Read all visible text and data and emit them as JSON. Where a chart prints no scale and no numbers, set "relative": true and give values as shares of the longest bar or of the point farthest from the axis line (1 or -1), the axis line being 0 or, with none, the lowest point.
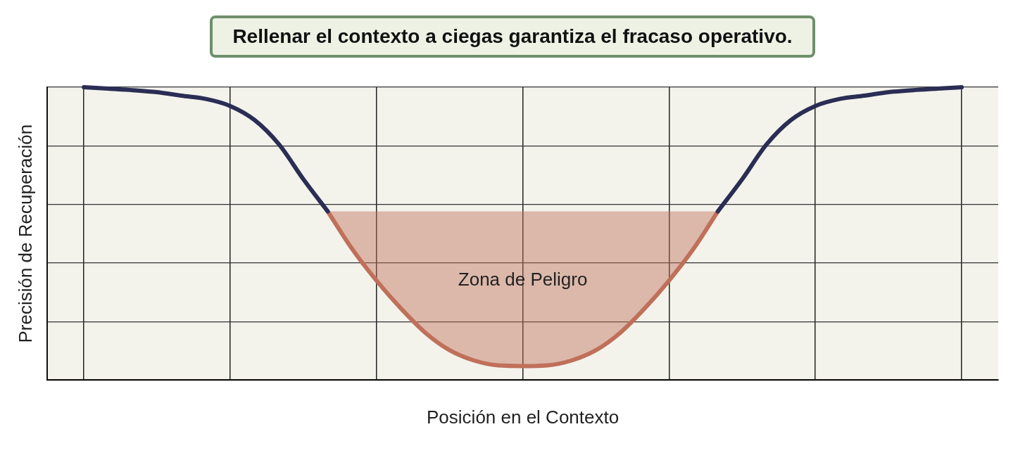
{
  "chart_data": {
    "type": "line",
    "title": "Rellenar el contexto a ciegas garantiza el fracaso operativo.",
    "xlabel": "Posición en el Contexto",
    "ylabel": "Precisión de Recuperación",
    "relative": true,
    "grid": true,
    "legend": false,
    "marker": "none",
    "line_style": "solid",
    "categories": [
      null,
      null,
      null,
      null,
      null,
      null,
      null,
      null,
      null,
      null,
      null,
      null,
      null,
      null,
      null,
      null,
      null,
      null,
      null,
      null,
      null,
      null,
      null,
      null,
      null,
      null,
      null,
      null,
      null,
      null,
      null,
      null,
      null,
      null,
      null,
      null,
      null,
      null,
      null
    ],
    "series": [
      {
        "color": "#2b2d55",
        "values": [
          null,
          1.0,
          0.995,
          0.99,
          0.983,
          0.971,
          0.96,
          0.936,
          0.888,
          0.805,
          0.686,
          0.576,
          null,
          null,
          null,
          null,
          null,
          null,
          null,
          null,
          null,
          null,
          null,
          null,
          null,
          null,
          null,
          0.576,
          0.686,
          0.805,
          0.888,
          0.936,
          0.96,
          0.971,
          0.983,
          0.99,
          0.995,
          1.0,
          null
        ]
      },
      {
        "color": "#c0705a",
        "values": [
          null,
          null,
          null,
          null,
          null,
          null,
          null,
          null,
          null,
          null,
          null,
          0.576,
          0.448,
          0.34,
          0.245,
          0.162,
          0.102,
          0.067,
          0.05,
          0.048,
          0.05,
          0.067,
          0.102,
          0.162,
          0.245,
          0.34,
          0.448,
          0.576,
          null,
          null,
          null,
          null,
          null,
          null,
          null,
          null,
          null,
          null,
          null
        ],
        "lower": [
          null,
          null,
          null,
          null,
          null,
          null,
          null,
          null,
          null,
          null,
          null,
          0.576,
          0.448,
          0.34,
          0.245,
          0.162,
          0.102,
          0.067,
          0.05,
          0.048,
          0.05,
          0.067,
          0.102,
          0.162,
          0.245,
          0.34,
          0.448,
          0.576,
          null,
          null,
          null,
          null,
          null,
          null,
          null,
          null,
          null,
          null,
          null
        ],
        "upper": [
          null,
          null,
          null,
          null,
          null,
          null,
          null,
          null,
          null,
          null,
          null,
          0.576,
          0.576,
          0.576,
          0.576,
          0.576,
          0.576,
          0.576,
          0.576,
          0.576,
          0.576,
          0.576,
          0.576,
          0.576,
          0.576,
          0.576,
          0.576,
          0.576,
          null,
          null,
          null,
          null,
          null,
          null,
          null,
          null,
          null,
          null,
          null
        ]
      }
    ],
    "annotations": [
      "Zona de Peligro"
    ]
  }
}
